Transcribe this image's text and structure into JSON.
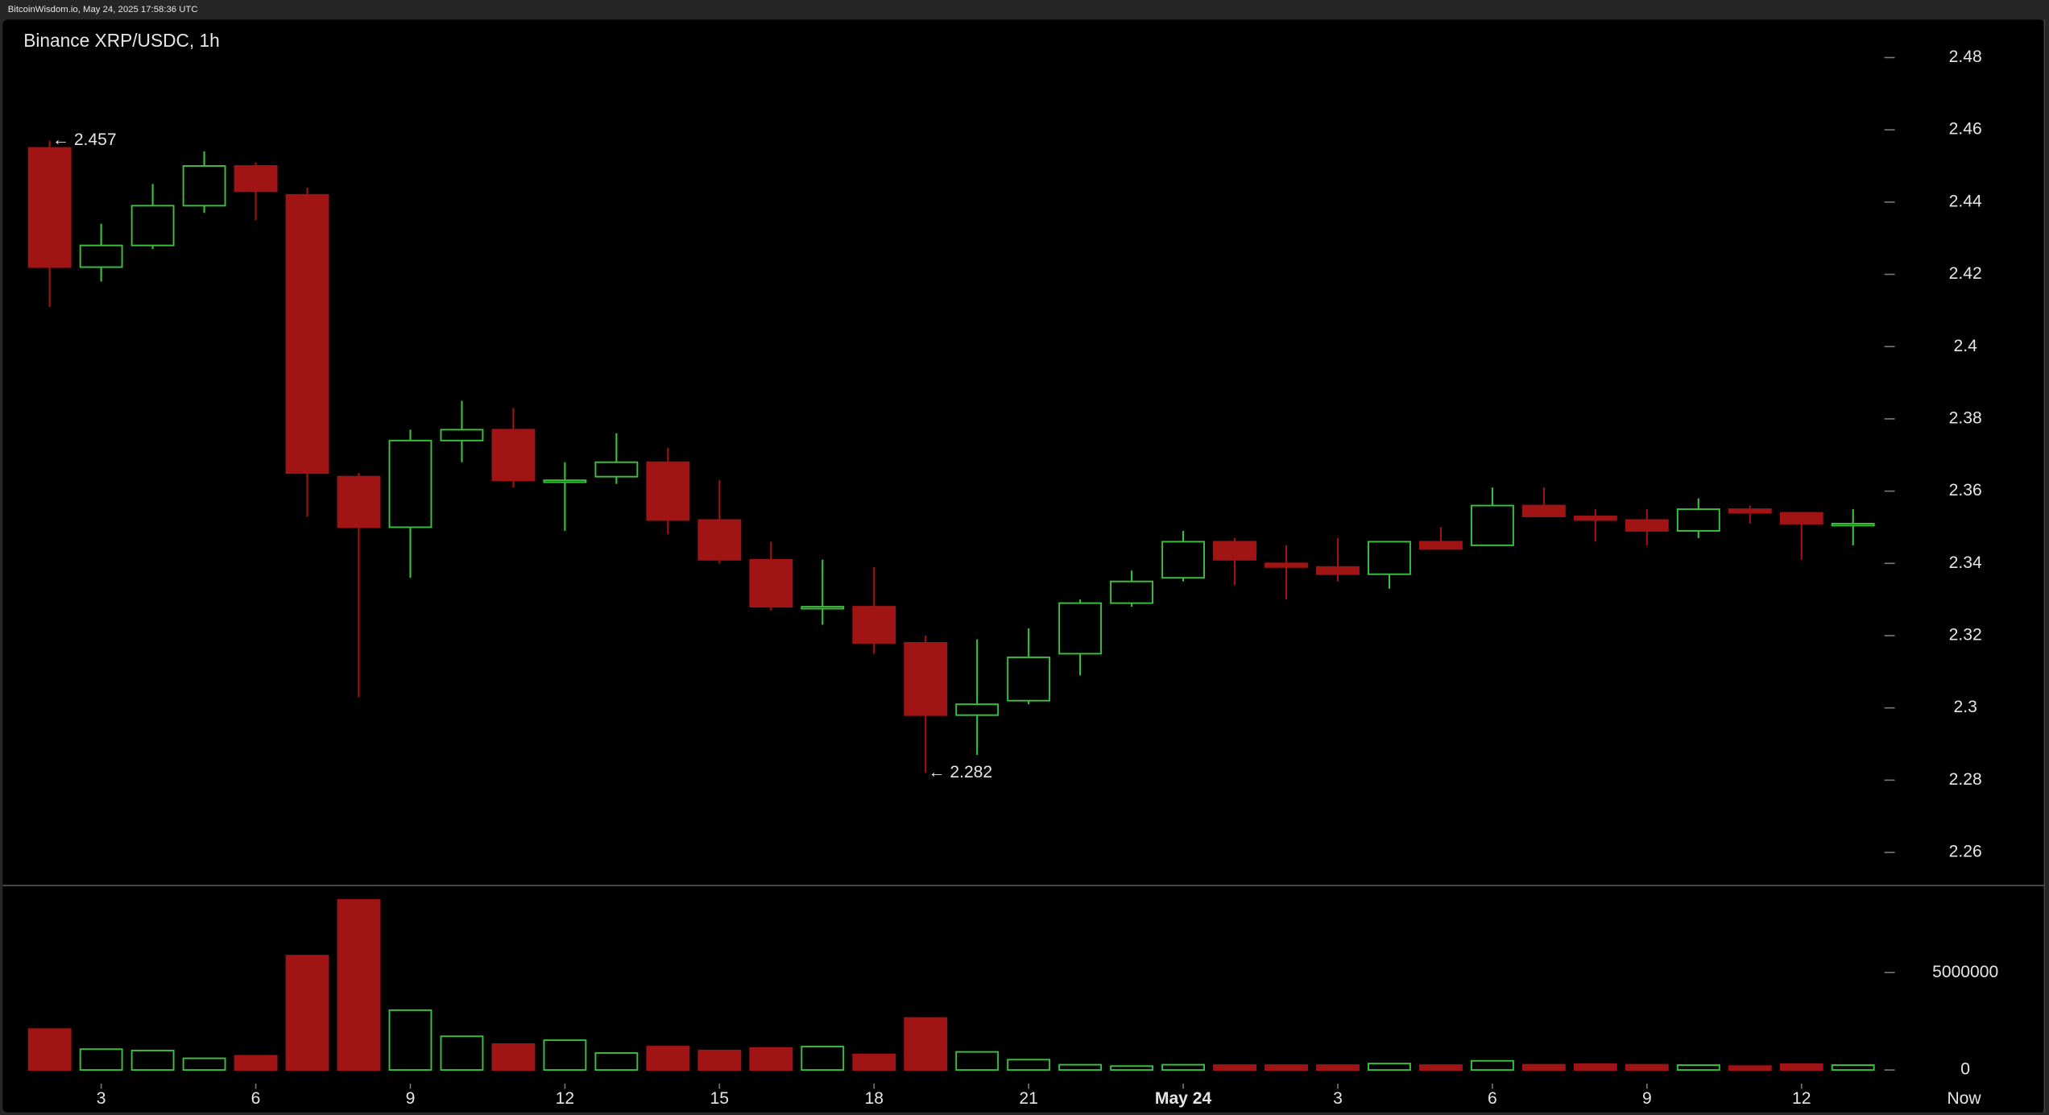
{
  "header": "BitcoinWisdom.io, May 24, 2025 17:58:36 UTC",
  "chart_data": {
    "type": "candlestick",
    "title": "Binance XRP/USDC, 1h",
    "categories": [
      null,
      "3",
      null,
      null,
      "6",
      null,
      null,
      "9",
      null,
      null,
      "12",
      null,
      null,
      "15",
      null,
      null,
      "18",
      null,
      null,
      "21",
      null,
      null,
      "May 24",
      null,
      null,
      "3",
      null,
      null,
      "6",
      null,
      null,
      "9",
      null,
      null,
      "12",
      null
    ],
    "x_end_label": "Now",
    "open": [
      2.455,
      2.422,
      2.428,
      2.439,
      2.45,
      2.442,
      2.364,
      2.35,
      2.374,
      2.377,
      2.363,
      2.364,
      2.368,
      2.352,
      2.341,
      2.328,
      2.328,
      2.318,
      2.298,
      2.302,
      2.315,
      2.329,
      2.336,
      2.346,
      2.34,
      2.339,
      2.337,
      2.346,
      2.345,
      2.356,
      2.353,
      2.352,
      2.349,
      2.355,
      2.354,
      2.351
    ],
    "high": [
      2.457,
      2.434,
      2.445,
      2.454,
      2.451,
      2.444,
      2.365,
      2.377,
      2.385,
      2.383,
      2.368,
      2.376,
      2.372,
      2.363,
      2.346,
      2.341,
      2.339,
      2.32,
      2.319,
      2.322,
      2.33,
      2.338,
      2.349,
      2.347,
      2.345,
      2.347,
      2.346,
      2.35,
      2.361,
      2.361,
      2.355,
      2.355,
      2.358,
      2.356,
      2.354,
      2.355
    ],
    "low": [
      2.411,
      2.418,
      2.427,
      2.437,
      2.435,
      2.353,
      2.303,
      2.336,
      2.368,
      2.361,
      2.349,
      2.362,
      2.348,
      2.34,
      2.327,
      2.323,
      2.315,
      2.282,
      2.287,
      2.301,
      2.309,
      2.328,
      2.335,
      2.334,
      2.33,
      2.335,
      2.333,
      2.344,
      2.345,
      2.353,
      2.346,
      2.345,
      2.347,
      2.351,
      2.341,
      2.345
    ],
    "close": [
      2.422,
      2.428,
      2.439,
      2.45,
      2.443,
      2.365,
      2.35,
      2.374,
      2.377,
      2.363,
      2.363,
      2.368,
      2.352,
      2.341,
      2.328,
      2.328,
      2.318,
      2.298,
      2.301,
      2.314,
      2.329,
      2.335,
      2.346,
      2.341,
      2.339,
      2.337,
      2.346,
      2.344,
      2.356,
      2.353,
      2.352,
      2.349,
      2.355,
      2.354,
      2.351,
      2.351
    ],
    "volume": [
      2100000,
      1070000,
      1000000,
      600000,
      730000,
      5870000,
      8730000,
      3070000,
      1730000,
      1330000,
      1530000,
      870000,
      1200000,
      1000000,
      1130000,
      1200000,
      800000,
      2670000,
      930000,
      530000,
      270000,
      200000,
      270000,
      250000,
      250000,
      250000,
      330000,
      250000,
      470000,
      270000,
      300000,
      270000,
      250000,
      200000,
      300000,
      250000
    ],
    "up_color": "#3cbf3c",
    "down_color": "#a01414",
    "ylim": [
      2.251,
      2.4905
    ],
    "yticks": [
      2.26,
      2.28,
      2.3,
      2.32,
      2.34,
      2.36,
      2.38,
      2.4,
      2.42,
      2.44,
      2.46,
      2.48
    ],
    "volume_ylim": [
      -700000,
      9500000
    ],
    "volume_yticks": [
      0,
      5000000
    ],
    "annotations": [
      {
        "text": "← 2.457",
        "value": 2.457
      },
      {
        "text": "← 2.282",
        "value": 2.282
      }
    ]
  }
}
